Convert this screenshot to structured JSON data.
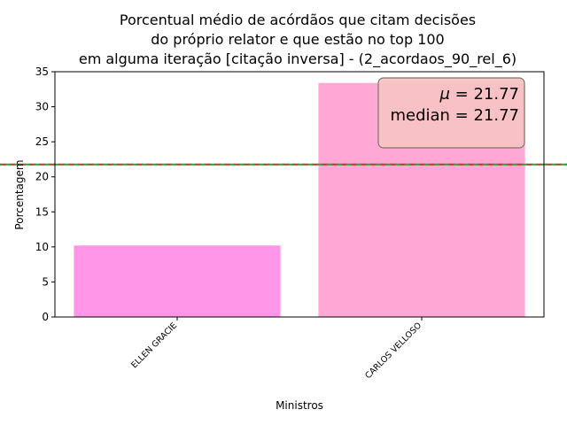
{
  "chart_data": {
    "type": "bar",
    "title_lines": [
      "Porcentual médio de acórdãos que citam decisões",
      "do próprio relator e que estão no top 100",
      "em alguma iteração [citação inversa] - (2_acordaos_90_rel_6)"
    ],
    "xlabel": "Ministros",
    "ylabel": "Porcentagem",
    "categories": [
      "ELLEN GRACIE",
      "CARLOS VELLOSO"
    ],
    "values": [
      10.2,
      33.4
    ],
    "bar_colors": [
      "#ff96e8",
      "#ffa8d6"
    ],
    "ylim": [
      0,
      35
    ],
    "yticks": [
      0,
      5,
      10,
      15,
      20,
      25,
      30,
      35
    ],
    "mean_line": {
      "value": 21.77,
      "color": "#d62728"
    },
    "median_line": {
      "value": 21.77,
      "color": "#2ca02c"
    },
    "stats_box": {
      "mean_symbol": "μ",
      "mean_text": " = 21.77",
      "median_text": "median = 21.77",
      "fill": "#f7c3c3",
      "edge": "#777766",
      "position": "top-right"
    },
    "grid": false,
    "legend": "none"
  }
}
